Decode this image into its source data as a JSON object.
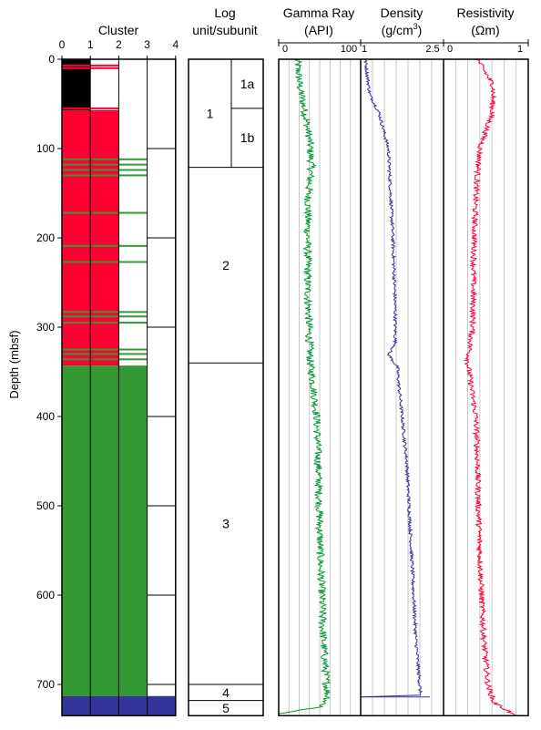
{
  "chart_data": {
    "type": "well-log",
    "y_axis": {
      "label": "Depth (mbsf)",
      "range": [
        0,
        735
      ],
      "ticks": [
        0,
        100,
        200,
        300,
        400,
        500,
        600,
        700
      ]
    },
    "cluster": {
      "title": "Cluster",
      "x_ticks": [
        0,
        1,
        2,
        3,
        4
      ],
      "colors": {
        "1": "#000000",
        "2": "#ff0033",
        "3": "#339933",
        "4": "#333399"
      },
      "blocks": [
        {
          "top": 0,
          "bottom": 58,
          "cluster": 1
        },
        {
          "top": 58,
          "bottom": 343,
          "cluster": 2
        },
        {
          "top": 343,
          "bottom": 713,
          "cluster": 3
        },
        {
          "top": 713,
          "bottom": 735,
          "cluster": 4
        }
      ],
      "thin_layers": [
        {
          "depth": 7,
          "cluster": 2
        },
        {
          "depth": 10,
          "cluster": 2
        },
        {
          "depth": 55,
          "cluster": 2
        },
        {
          "depth": 58,
          "cluster": 2
        },
        {
          "depth": 62,
          "cluster": 2
        },
        {
          "depth": 112,
          "cluster": 3
        },
        {
          "depth": 118,
          "cluster": 3
        },
        {
          "depth": 124,
          "cluster": 3
        },
        {
          "depth": 130,
          "cluster": 3
        },
        {
          "depth": 172,
          "cluster": 3
        },
        {
          "depth": 209,
          "cluster": 3
        },
        {
          "depth": 227,
          "cluster": 3
        },
        {
          "depth": 283,
          "cluster": 3
        },
        {
          "depth": 288,
          "cluster": 3
        },
        {
          "depth": 295,
          "cluster": 3
        },
        {
          "depth": 325,
          "cluster": 3
        },
        {
          "depth": 330,
          "cluster": 3
        },
        {
          "depth": 336,
          "cluster": 3
        }
      ]
    },
    "log_units": {
      "title_line1": "Log",
      "title_line2": "unit/subunit",
      "units": [
        {
          "label": "1",
          "top": 0,
          "bottom": 121
        },
        {
          "label": "2",
          "top": 121,
          "bottom": 340
        },
        {
          "label": "3",
          "top": 340,
          "bottom": 700
        },
        {
          "label": "4",
          "top": 700,
          "bottom": 718
        },
        {
          "label": "5",
          "top": 718,
          "bottom": 735
        }
      ],
      "subunits": [
        {
          "label": "1a",
          "top": 0,
          "bottom": 55
        },
        {
          "label": "1b",
          "top": 55,
          "bottom": 121
        }
      ]
    },
    "gamma_ray": {
      "title": "Gamma Ray",
      "unit": "(API)",
      "min_label": "0",
      "max_label": "100",
      "range": [
        0,
        125
      ],
      "color": "#009933",
      "profile": [
        [
          0,
          28
        ],
        [
          30,
          32
        ],
        [
          60,
          40
        ],
        [
          90,
          47
        ],
        [
          121,
          50
        ],
        [
          150,
          45
        ],
        [
          200,
          44
        ],
        [
          250,
          44
        ],
        [
          300,
          46
        ],
        [
          340,
          48
        ],
        [
          360,
          52
        ],
        [
          400,
          58
        ],
        [
          450,
          60
        ],
        [
          500,
          62
        ],
        [
          550,
          63
        ],
        [
          600,
          66
        ],
        [
          650,
          68
        ],
        [
          700,
          73
        ],
        [
          715,
          75
        ],
        [
          725,
          65
        ],
        [
          733,
          0
        ]
      ],
      "noise": 6
    },
    "density": {
      "title": "Density",
      "unit_main": "(g/cm",
      "unit_sup": "3",
      "unit_end": ")",
      "min_label": "1",
      "max_label": "2.5",
      "range": [
        1,
        2.8
      ],
      "color": "#333399",
      "profile": [
        [
          0,
          1.1
        ],
        [
          40,
          1.2
        ],
        [
          60,
          1.4
        ],
        [
          100,
          1.6
        ],
        [
          150,
          1.65
        ],
        [
          200,
          1.7
        ],
        [
          280,
          1.75
        ],
        [
          320,
          1.75
        ],
        [
          330,
          1.6
        ],
        [
          345,
          1.8
        ],
        [
          360,
          1.82
        ],
        [
          400,
          1.9
        ],
        [
          450,
          2.0
        ],
        [
          500,
          2.05
        ],
        [
          550,
          2.1
        ],
        [
          600,
          2.15
        ],
        [
          650,
          2.2
        ],
        [
          700,
          2.28
        ],
        [
          712,
          2.3
        ],
        [
          714,
          1.0
        ]
      ],
      "noise": 0.035
    },
    "resistivity": {
      "title": "Resistivity",
      "unit": "(Ωm)",
      "min_label": "0",
      "max_label": "1",
      "range": [
        0,
        1.05
      ],
      "color": "#ff0033",
      "profile": [
        [
          0,
          0.42
        ],
        [
          30,
          0.62
        ],
        [
          60,
          0.6
        ],
        [
          100,
          0.45
        ],
        [
          150,
          0.4
        ],
        [
          200,
          0.38
        ],
        [
          300,
          0.36
        ],
        [
          340,
          0.3
        ],
        [
          400,
          0.4
        ],
        [
          450,
          0.42
        ],
        [
          500,
          0.43
        ],
        [
          550,
          0.45
        ],
        [
          600,
          0.47
        ],
        [
          650,
          0.5
        ],
        [
          700,
          0.55
        ],
        [
          720,
          0.62
        ],
        [
          735,
          0.9
        ]
      ],
      "noise": 0.035
    }
  }
}
